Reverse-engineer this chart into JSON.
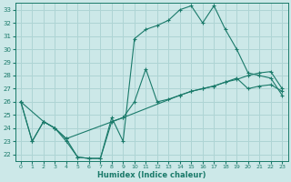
{
  "xlabel": "Humidex (Indice chaleur)",
  "bg_color": "#cce8e8",
  "grid_color": "#aed4d4",
  "line_color": "#1a7a6a",
  "xlim": [
    -0.5,
    23.5
  ],
  "ylim": [
    21.5,
    33.5
  ],
  "yticks": [
    22,
    23,
    24,
    25,
    26,
    27,
    28,
    29,
    30,
    31,
    32,
    33
  ],
  "xticks": [
    0,
    1,
    2,
    3,
    4,
    5,
    6,
    7,
    8,
    9,
    10,
    11,
    12,
    13,
    14,
    15,
    16,
    17,
    18,
    19,
    20,
    21,
    22,
    23
  ],
  "line1_x": [
    0,
    1,
    2,
    3,
    4,
    5,
    6,
    7,
    8,
    9,
    10,
    11,
    12,
    13,
    14,
    15,
    16,
    17,
    18,
    19,
    20,
    21,
    22,
    23
  ],
  "line1_y": [
    26,
    23,
    24.5,
    24,
    23,
    21.8,
    21.7,
    21.7,
    24.8,
    23,
    30.8,
    31.5,
    31.8,
    32.2,
    33.0,
    33.3,
    32.0,
    33.3,
    31.5,
    30.0,
    28.2,
    28.0,
    27.8,
    26.5
  ],
  "line2_x": [
    0,
    2,
    3,
    4,
    9,
    14,
    15,
    16,
    17,
    18,
    19,
    20,
    21,
    22,
    23
  ],
  "line2_y": [
    26,
    24.5,
    24,
    23.2,
    24.8,
    26.5,
    26.8,
    27.0,
    27.2,
    27.5,
    27.7,
    28.0,
    28.2,
    28.3,
    27.0
  ],
  "line3_x": [
    0,
    1,
    2,
    3,
    4,
    5,
    6,
    7,
    8,
    9,
    10,
    11,
    12,
    13,
    14,
    15,
    16,
    17,
    18,
    19,
    20,
    21,
    22,
    23
  ],
  "line3_y": [
    26,
    23,
    24.5,
    24,
    23.2,
    21.8,
    21.7,
    21.7,
    24.5,
    24.8,
    26.0,
    28.5,
    26.0,
    26.2,
    26.5,
    26.8,
    27.0,
    27.2,
    27.5,
    27.8,
    27.0,
    27.2,
    27.3,
    26.8
  ]
}
